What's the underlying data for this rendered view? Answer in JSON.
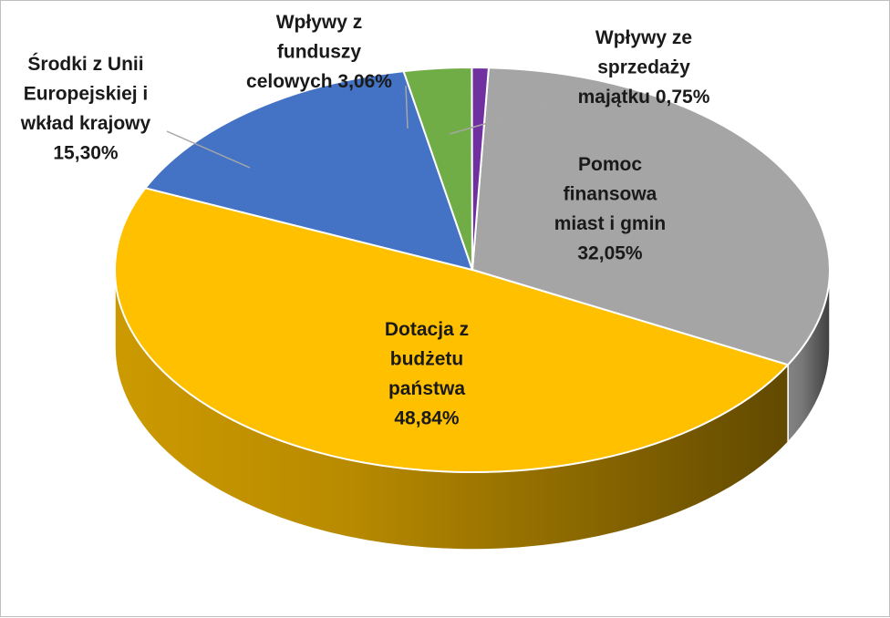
{
  "chart_data": {
    "type": "pie",
    "title": "",
    "three_d": true,
    "legend": "none",
    "slices": [
      {
        "label_lines": [
          "Pomoc",
          "finansowa",
          "miast i gmin",
          "32,05%"
        ],
        "value": 32.05,
        "color": "#a5a5a5"
      },
      {
        "label_lines": [
          "Dotacja z",
          "budżetu",
          "państwa",
          "48,84%"
        ],
        "value": 48.84,
        "color": "#ffc000"
      },
      {
        "label_lines": [
          "Środki z Unii",
          "Europejskiej i",
          "wkład krajowy",
          "15,30%"
        ],
        "value": 15.3,
        "color": "#4472c4"
      },
      {
        "label_lines": [
          "Wpływy z",
          "funduszy",
          "celowych 3,06%"
        ],
        "value": 3.06,
        "color": "#70ad47"
      },
      {
        "label_lines": [
          "Wpływy ze",
          "sprzedaży",
          "majątku 0,75%"
        ],
        "value": 0.75,
        "color": "#7030a0"
      }
    ]
  }
}
